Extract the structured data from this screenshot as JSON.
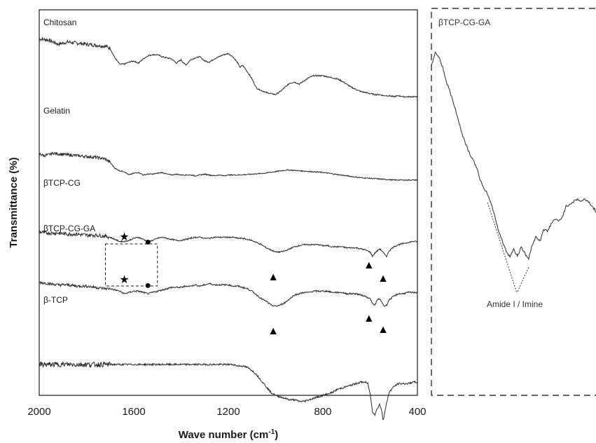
{
  "chart_data": [
    {
      "type": "line",
      "xlabel": "Wave number (cm",
      "xlabel_superscript": "-1",
      "xlabel_suffix": ")",
      "ylabel": "Transmittance (%)",
      "xlim": [
        2000,
        400
      ],
      "x_reversed": true,
      "x_ticks": [
        "2000",
        "1600",
        "1200",
        "800",
        "400"
      ],
      "y_ticks": "none",
      "grid": false,
      "series": [
        {
          "name": "Chitosan",
          "x": [
            2000,
            1960,
            1920,
            1880,
            1840,
            1800,
            1760,
            1720,
            1700,
            1680,
            1660,
            1640,
            1620,
            1600,
            1580,
            1560,
            1540,
            1520,
            1500,
            1480,
            1460,
            1440,
            1420,
            1400,
            1380,
            1360,
            1340,
            1320,
            1300,
            1280,
            1260,
            1240,
            1220,
            1200,
            1180,
            1160,
            1150,
            1140,
            1120,
            1100,
            1080,
            1060,
            1040,
            1020,
            1000,
            980,
            960,
            940,
            920,
            900,
            880,
            860,
            840,
            820,
            800,
            780,
            760,
            740,
            720,
            700,
            680,
            660,
            640,
            620,
            600,
            580,
            560,
            540,
            520,
            500,
            480,
            460,
            440,
            420,
            400
          ],
          "y": [
            0.93,
            0.92,
            0.88,
            0.9,
            0.89,
            0.88,
            0.87,
            0.86,
            0.84,
            0.75,
            0.69,
            0.69,
            0.71,
            0.72,
            0.7,
            0.74,
            0.77,
            0.78,
            0.78,
            0.76,
            0.75,
            0.74,
            0.7,
            0.73,
            0.68,
            0.73,
            0.75,
            0.76,
            0.72,
            0.71,
            0.74,
            0.76,
            0.78,
            0.79,
            0.76,
            0.7,
            0.66,
            0.68,
            0.62,
            0.55,
            0.46,
            0.44,
            0.42,
            0.41,
            0.4,
            0.43,
            0.47,
            0.51,
            0.52,
            0.5,
            0.53,
            0.56,
            0.58,
            0.58,
            0.58,
            0.57,
            0.56,
            0.55,
            0.53,
            0.5,
            0.47,
            0.45,
            0.43,
            0.42,
            0.41,
            0.4,
            0.4,
            0.39,
            0.39,
            0.38,
            0.39,
            0.38,
            0.38,
            0.38,
            0.38
          ]
        },
        {
          "name": "Gelatin",
          "x": [
            2000,
            1980,
            1960,
            1940,
            1920,
            1880,
            1840,
            1800,
            1760,
            1720,
            1700,
            1680,
            1660,
            1640,
            1620,
            1600,
            1580,
            1560,
            1540,
            1520,
            1500,
            1480,
            1460,
            1440,
            1420,
            1400,
            1380,
            1360,
            1340,
            1320,
            1300,
            1280,
            1260,
            1240,
            1220,
            1200,
            1150,
            1100,
            1050,
            1000,
            950,
            900,
            850,
            800,
            750,
            700,
            650,
            600,
            550,
            500,
            450,
            400
          ],
          "y": [
            0.62,
            0.6,
            0.61,
            0.63,
            0.62,
            0.61,
            0.6,
            0.59,
            0.58,
            0.56,
            0.52,
            0.45,
            0.42,
            0.41,
            0.37,
            0.39,
            0.4,
            0.37,
            0.38,
            0.38,
            0.39,
            0.4,
            0.38,
            0.37,
            0.38,
            0.37,
            0.37,
            0.37,
            0.36,
            0.37,
            0.38,
            0.37,
            0.36,
            0.37,
            0.36,
            0.37,
            0.37,
            0.38,
            0.39,
            0.41,
            0.43,
            0.42,
            0.41,
            0.4,
            0.38,
            0.36,
            0.34,
            0.33,
            0.32,
            0.31,
            0.31,
            0.31
          ]
        },
        {
          "name": "βTCP-CG",
          "x": [
            2000,
            1960,
            1920,
            1880,
            1840,
            1800,
            1760,
            1720,
            1700,
            1680,
            1660,
            1640,
            1620,
            1600,
            1580,
            1560,
            1540,
            1520,
            1500,
            1480,
            1460,
            1440,
            1420,
            1400,
            1380,
            1360,
            1340,
            1320,
            1300,
            1280,
            1260,
            1240,
            1220,
            1200,
            1180,
            1160,
            1140,
            1120,
            1100,
            1080,
            1060,
            1040,
            1020,
            1000,
            980,
            960,
            940,
            920,
            900,
            880,
            860,
            840,
            820,
            800,
            780,
            760,
            740,
            720,
            700,
            680,
            660,
            640,
            620,
            600,
            590,
            580,
            570,
            560,
            550,
            540,
            530,
            520,
            500,
            480,
            460,
            440,
            420,
            400
          ],
          "y": [
            0.36,
            0.35,
            0.35,
            0.34,
            0.34,
            0.33,
            0.33,
            0.32,
            0.31,
            0.29,
            0.27,
            0.27,
            0.28,
            0.3,
            0.31,
            0.29,
            0.27,
            0.28,
            0.3,
            0.31,
            0.3,
            0.29,
            0.28,
            0.28,
            0.29,
            0.3,
            0.31,
            0.31,
            0.3,
            0.3,
            0.31,
            0.31,
            0.31,
            0.31,
            0.31,
            0.3,
            0.3,
            0.29,
            0.28,
            0.26,
            0.24,
            0.21,
            0.19,
            0.17,
            0.17,
            0.18,
            0.2,
            0.22,
            0.23,
            0.24,
            0.24,
            0.24,
            0.24,
            0.23,
            0.23,
            0.22,
            0.22,
            0.22,
            0.21,
            0.21,
            0.21,
            0.2,
            0.19,
            0.17,
            0.13,
            0.16,
            0.18,
            0.2,
            0.18,
            0.15,
            0.13,
            0.18,
            0.22,
            0.24,
            0.25,
            0.26,
            0.27,
            0.27
          ]
        },
        {
          "name": "βTCP-CG-GA",
          "x": [
            2000,
            1960,
            1920,
            1880,
            1840,
            1800,
            1760,
            1720,
            1700,
            1680,
            1660,
            1640,
            1620,
            1600,
            1580,
            1560,
            1540,
            1520,
            1500,
            1480,
            1460,
            1440,
            1420,
            1400,
            1380,
            1360,
            1340,
            1320,
            1300,
            1280,
            1260,
            1240,
            1220,
            1200,
            1180,
            1160,
            1140,
            1120,
            1100,
            1080,
            1060,
            1040,
            1020,
            1000,
            980,
            960,
            940,
            920,
            900,
            880,
            860,
            840,
            820,
            800,
            780,
            760,
            740,
            720,
            700,
            680,
            660,
            640,
            620,
            600,
            590,
            580,
            570,
            560,
            550,
            540,
            530,
            520,
            500,
            480,
            460,
            440,
            420,
            400
          ],
          "y": [
            0.24,
            0.23,
            0.22,
            0.22,
            0.21,
            0.21,
            0.2,
            0.19,
            0.19,
            0.18,
            0.17,
            0.15,
            0.16,
            0.17,
            0.17,
            0.16,
            0.15,
            0.16,
            0.17,
            0.18,
            0.19,
            0.2,
            0.2,
            0.2,
            0.21,
            0.21,
            0.22,
            0.21,
            0.22,
            0.23,
            0.22,
            0.22,
            0.22,
            0.22,
            0.21,
            0.21,
            0.2,
            0.19,
            0.17,
            0.14,
            0.11,
            0.09,
            0.06,
            0.05,
            0.06,
            0.08,
            0.11,
            0.14,
            0.15,
            0.16,
            0.16,
            0.17,
            0.17,
            0.17,
            0.17,
            0.16,
            0.16,
            0.16,
            0.15,
            0.15,
            0.15,
            0.14,
            0.13,
            0.11,
            0.07,
            0.06,
            0.1,
            0.11,
            0.08,
            0.05,
            0.06,
            0.1,
            0.13,
            0.15,
            0.15,
            0.16,
            0.16,
            0.16
          ]
        },
        {
          "name": "β-TCP",
          "x": [
            2000,
            1960,
            1920,
            1880,
            1840,
            1800,
            1760,
            1720,
            1680,
            1640,
            1600,
            1560,
            1520,
            1480,
            1440,
            1400,
            1360,
            1320,
            1280,
            1240,
            1200,
            1180,
            1160,
            1140,
            1120,
            1100,
            1080,
            1060,
            1040,
            1020,
            1000,
            980,
            960,
            940,
            920,
            900,
            880,
            860,
            840,
            820,
            800,
            780,
            760,
            740,
            720,
            700,
            680,
            660,
            640,
            620,
            610,
            600,
            590,
            580,
            570,
            560,
            550,
            545,
            540,
            530,
            520,
            500,
            480,
            460,
            440,
            420,
            400
          ],
          "y": [
            0.1,
            0.1,
            0.1,
            0.1,
            0.1,
            0.1,
            0.1,
            0.1,
            0.1,
            0.1,
            0.1,
            0.1,
            0.1,
            0.1,
            0.1,
            0.1,
            0.1,
            0.1,
            0.1,
            0.1,
            0.1,
            0.1,
            0.09,
            0.09,
            0.08,
            0.06,
            0.03,
            -0.01,
            -0.05,
            -0.09,
            -0.11,
            -0.12,
            -0.13,
            -0.14,
            -0.14,
            -0.15,
            -0.15,
            -0.14,
            -0.13,
            -0.12,
            -0.11,
            -0.1,
            -0.09,
            -0.07,
            -0.06,
            -0.05,
            -0.04,
            -0.03,
            -0.02,
            -0.02,
            -0.03,
            -0.1,
            -0.22,
            -0.24,
            -0.2,
            -0.17,
            -0.22,
            -0.28,
            -0.24,
            -0.16,
            -0.09,
            -0.05,
            -0.03,
            -0.03,
            -0.03,
            -0.02,
            -0.02
          ]
        }
      ],
      "markers": [
        {
          "symbol": "★",
          "x": 1640,
          "series": "βTCP-CG"
        },
        {
          "symbol": "●",
          "x": 1540,
          "series": "βTCP-CG"
        },
        {
          "symbol": "▲",
          "x": 1010,
          "series": "βTCP-CG"
        },
        {
          "symbol": "▲",
          "x": 605,
          "series": "βTCP-CG"
        },
        {
          "symbol": "▲",
          "x": 545,
          "series": "βTCP-CG"
        },
        {
          "symbol": "★",
          "x": 1640,
          "series": "βTCP-CG-GA"
        },
        {
          "symbol": "●",
          "x": 1540,
          "series": "βTCP-CG-GA"
        },
        {
          "symbol": "▲",
          "x": 1010,
          "series": "βTCP-CG-GA"
        },
        {
          "symbol": "▲",
          "x": 605,
          "series": "βTCP-CG-GA"
        },
        {
          "symbol": "▲",
          "x": 545,
          "series": "βTCP-CG-GA"
        }
      ],
      "highlight_box": {
        "x_range": [
          1720,
          1500
        ],
        "style": "dashed"
      }
    },
    {
      "type": "line",
      "title": "βTCP-CG-GA",
      "xlim": [
        1720,
        1500
      ],
      "x_reversed": true,
      "axes": "none",
      "border": "dashed",
      "series": [
        {
          "name": "βTCP-CG-GA",
          "x": [
            1720,
            1715,
            1710,
            1705,
            1700,
            1695,
            1690,
            1685,
            1680,
            1675,
            1670,
            1665,
            1660,
            1655,
            1650,
            1645,
            1640,
            1635,
            1630,
            1625,
            1620,
            1615,
            1610,
            1605,
            1600,
            1595,
            1590,
            1585,
            1580,
            1575,
            1570,
            1565,
            1560,
            1555,
            1550,
            1545,
            1540,
            1535,
            1530,
            1525,
            1520,
            1515,
            1510,
            1505,
            1500
          ],
          "y": [
            0.8,
            0.86,
            0.84,
            0.8,
            0.74,
            0.7,
            0.65,
            0.6,
            0.54,
            0.5,
            0.46,
            0.43,
            0.4,
            0.35,
            0.31,
            0.29,
            0.25,
            0.2,
            0.14,
            0.1,
            0.06,
            0.04,
            0.07,
            0.04,
            0.08,
            0.05,
            0.03,
            0.09,
            0.12,
            0.1,
            0.15,
            0.14,
            0.17,
            0.19,
            0.18,
            0.2,
            0.24,
            0.25,
            0.26,
            0.27,
            0.26,
            0.27,
            0.26,
            0.24,
            0.22
          ]
        }
      ],
      "annotations": [
        {
          "text": "Amide I / Imine",
          "points_to_x": [
            1645,
            1590
          ]
        }
      ]
    }
  ]
}
